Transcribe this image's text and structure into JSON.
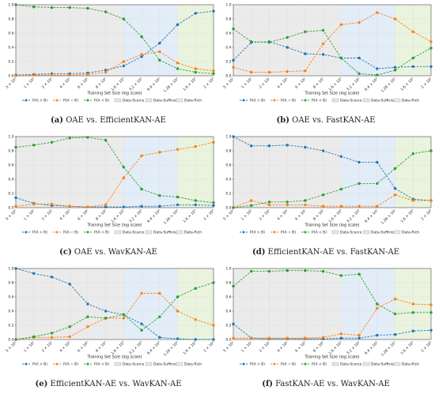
{
  "chart_data": [
    {
      "type": "line",
      "tag": "(a)",
      "caption": "OAE vs. EfficientKAN-AE",
      "x_label": "Training Set Size (log scale)",
      "categories": [
        "5 × 10¹",
        "1 × 10²",
        "2 × 10²",
        "4 × 10²",
        "6 × 10²",
        "8 × 10²",
        "1.6 × 10³",
        "3.2 × 10³",
        "6.4 × 10³",
        "1.28 × 10⁴",
        "1.6 × 10⁴",
        "2 × 10⁴"
      ],
      "series": [
        {
          "name": "P(A ≻ B)",
          "color": "#1f77b4",
          "values": [
            0.01,
            0.02,
            0.03,
            0.03,
            0.04,
            0.08,
            0.14,
            0.27,
            0.46,
            0.72,
            0.88,
            0.91
          ]
        },
        {
          "name": "P(A = B)",
          "color": "#ff7f0e",
          "values": [
            0.0,
            0.01,
            0.01,
            0.01,
            0.02,
            0.05,
            0.2,
            0.3,
            0.34,
            0.18,
            0.1,
            0.07
          ]
        },
        {
          "name": "P(A ≺ B)",
          "color": "#2ca02c",
          "values": [
            1.0,
            0.97,
            0.96,
            0.96,
            0.95,
            0.9,
            0.8,
            0.55,
            0.22,
            0.1,
            0.05,
            0.03
          ]
        }
      ],
      "regions": [
        {
          "name": "Data-Scarce",
          "color": "#e6e6e6",
          "start": "5 × 10¹",
          "end": "1.6 × 10³"
        },
        {
          "name": "Data-Sufficient",
          "color": "#dce8f6",
          "start": "1.6 × 10³",
          "end": "1.28 × 10⁴"
        },
        {
          "name": "Data-Rich",
          "color": "#e3f0d6",
          "start": "1.28 × 10⁴",
          "end": "2 × 10⁴"
        }
      ],
      "ylim": [
        0,
        1
      ],
      "yticks": [
        {
          "value": 0,
          "label": "0.0"
        },
        {
          "value": 0.2,
          "label": "0.2"
        },
        {
          "value": 0.4,
          "label": "0.4"
        },
        {
          "value": 0.6,
          "label": "0.6"
        },
        {
          "value": 0.8,
          "label": "0.8"
        },
        {
          "value": 1,
          "label": "1.0"
        }
      ],
      "grid": true
    },
    {
      "type": "line",
      "tag": "(b)",
      "caption": "OAE vs. FastKAN-AE",
      "x_label": "Training Set Size (log scale)",
      "categories": [
        "5 × 10¹",
        "1 × 10²",
        "2 × 10²",
        "4 × 10²",
        "6 × 10²",
        "8 × 10²",
        "1.6 × 10³",
        "3.2 × 10³",
        "6.4 × 10³",
        "1.28 × 10⁴",
        "1.6 × 10⁴",
        "2 × 10⁴"
      ],
      "series": [
        {
          "name": "P(A ≻ B)",
          "color": "#1f77b4",
          "values": [
            0.22,
            0.47,
            0.48,
            0.4,
            0.31,
            0.3,
            0.25,
            0.25,
            0.1,
            0.12,
            0.13,
            0.13
          ]
        },
        {
          "name": "P(A = B)",
          "color": "#ff7f0e",
          "values": [
            0.12,
            0.05,
            0.05,
            0.06,
            0.07,
            0.45,
            0.72,
            0.75,
            0.89,
            0.8,
            0.62,
            0.48
          ]
        },
        {
          "name": "P(A ≺ B)",
          "color": "#2ca02c",
          "values": [
            0.66,
            0.48,
            0.47,
            0.54,
            0.62,
            0.64,
            0.25,
            0.03,
            0.01,
            0.08,
            0.25,
            0.39
          ]
        }
      ],
      "regions": [
        {
          "name": "Data-Scarce",
          "color": "#e6e6e6",
          "start": "5 × 10¹",
          "end": "1.6 × 10³"
        },
        {
          "name": "Data-Sufficient",
          "color": "#dce8f6",
          "start": "1.6 × 10³",
          "end": "1.28 × 10⁴"
        },
        {
          "name": "Data-Rich",
          "color": "#e3f0d6",
          "start": "1.28 × 10⁴",
          "end": "2 × 10⁴"
        }
      ],
      "ylim": [
        0,
        1
      ],
      "yticks": [
        {
          "value": 0,
          "label": "0.0"
        },
        {
          "value": 0.2,
          "label": "0.2"
        },
        {
          "value": 0.4,
          "label": "0.4"
        },
        {
          "value": 0.6,
          "label": "0.6"
        },
        {
          "value": 0.8,
          "label": "0.8"
        },
        {
          "value": 1,
          "label": "1.0"
        }
      ],
      "grid": true
    },
    {
      "type": "line",
      "tag": "(c)",
      "caption": "OAE vs. WavKAN-AE",
      "x_label": "Training Set Size (log scale)",
      "categories": [
        "5 × 10¹",
        "1 × 10²",
        "2 × 10²",
        "4 × 10²",
        "6 × 10²",
        "8 × 10²",
        "1.6 × 10³",
        "3.2 × 10³",
        "6.4 × 10³",
        "1.28 × 10⁴",
        "1.6 × 10⁴",
        "2 × 10⁴"
      ],
      "series": [
        {
          "name": "P(A ≻ B)",
          "color": "#1f77b4",
          "values": [
            0.14,
            0.06,
            0.03,
            0.02,
            0.01,
            0.01,
            0.01,
            0.02,
            0.02,
            0.04,
            0.04,
            0.03
          ]
        },
        {
          "name": "P(A = B)",
          "color": "#ff7f0e",
          "values": [
            0.02,
            0.05,
            0.05,
            0.02,
            0.01,
            0.04,
            0.42,
            0.73,
            0.78,
            0.82,
            0.86,
            0.92
          ]
        },
        {
          "name": "P(A ≺ B)",
          "color": "#2ca02c",
          "values": [
            0.85,
            0.88,
            0.92,
            0.98,
            0.99,
            0.95,
            0.57,
            0.26,
            0.17,
            0.15,
            0.1,
            0.07
          ]
        }
      ],
      "regions": [
        {
          "name": "Data-Scarce",
          "color": "#e6e6e6",
          "start": "5 × 10¹",
          "end": "1.6 × 10³"
        },
        {
          "name": "Data-Sufficient",
          "color": "#dce8f6",
          "start": "1.6 × 10³",
          "end": "1.28 × 10⁴"
        },
        {
          "name": "Data-Rich",
          "color": "#e3f0d6",
          "start": "1.28 × 10⁴",
          "end": "2 × 10⁴"
        }
      ],
      "ylim": [
        0,
        1
      ],
      "yticks": [
        {
          "value": 0,
          "label": "0.0"
        },
        {
          "value": 0.2,
          "label": "0.2"
        },
        {
          "value": 0.4,
          "label": "0.4"
        },
        {
          "value": 0.6,
          "label": "0.6"
        },
        {
          "value": 0.8,
          "label": "0.8"
        },
        {
          "value": 1,
          "label": "1.0"
        }
      ],
      "grid": true
    },
    {
      "type": "line",
      "tag": "(d)",
      "caption": "EfficientKAN-AE vs. FastKAN-AE",
      "x_label": "Training Set Size (log scale)",
      "categories": [
        "5 × 10¹",
        "1 × 10²",
        "2 × 10²",
        "4 × 10²",
        "6 × 10²",
        "8 × 10²",
        "1.6 × 10³",
        "3.2 × 10³",
        "6.4 × 10³",
        "1.28 × 10⁴",
        "1.6 × 10⁴",
        "2 × 10⁴"
      ],
      "series": [
        {
          "name": "P(A ≻ B)",
          "color": "#1f77b4",
          "values": [
            1.0,
            0.87,
            0.87,
            0.88,
            0.85,
            0.8,
            0.72,
            0.64,
            0.64,
            0.27,
            0.12,
            0.1
          ]
        },
        {
          "name": "P(A = B)",
          "color": "#ff7f0e",
          "values": [
            0.0,
            0.1,
            0.04,
            0.04,
            0.04,
            0.02,
            0.02,
            0.02,
            0.02,
            0.18,
            0.1,
            0.1
          ]
        },
        {
          "name": "P(A ≺ B)",
          "color": "#2ca02c",
          "values": [
            0.0,
            0.03,
            0.08,
            0.08,
            0.1,
            0.18,
            0.26,
            0.34,
            0.34,
            0.55,
            0.76,
            0.8
          ]
        }
      ],
      "regions": [
        {
          "name": "Data-Scarce",
          "color": "#e6e6e6",
          "start": "5 × 10¹",
          "end": "1.6 × 10³"
        },
        {
          "name": "Data-Sufficient",
          "color": "#dce8f6",
          "start": "1.6 × 10³",
          "end": "1.28 × 10⁴"
        },
        {
          "name": "Data-Rich",
          "color": "#e3f0d6",
          "start": "1.28 × 10⁴",
          "end": "2 × 10⁴"
        }
      ],
      "ylim": [
        0,
        1
      ],
      "yticks": [
        {
          "value": 0,
          "label": "0.0"
        },
        {
          "value": 0.2,
          "label": "0.2"
        },
        {
          "value": 0.4,
          "label": "0.4"
        },
        {
          "value": 0.6,
          "label": "0.6"
        },
        {
          "value": 0.8,
          "label": "0.8"
        },
        {
          "value": 1,
          "label": "1.0"
        }
      ],
      "grid": true
    },
    {
      "type": "line",
      "tag": "(e)",
      "caption": "EfficientKAN-AE vs. WavKAN-AE",
      "x_label": "Training Set Size (log scale)",
      "categories": [
        "5 × 10¹",
        "1 × 10²",
        "2 × 10²",
        "4 × 10²",
        "6 × 10²",
        "8 × 10²",
        "1.6 × 10³",
        "3.2 × 10³",
        "6.4 × 10³",
        "1.28 × 10⁴",
        "1.6 × 10⁴",
        "2 × 10⁴"
      ],
      "series": [
        {
          "name": "P(A ≻ B)",
          "color": "#1f77b4",
          "values": [
            1.0,
            0.93,
            0.88,
            0.78,
            0.5,
            0.4,
            0.35,
            0.22,
            0.03,
            0.01,
            0.0,
            0.0
          ]
        },
        {
          "name": "P(A = B)",
          "color": "#ff7f0e",
          "values": [
            0.0,
            0.03,
            0.03,
            0.04,
            0.18,
            0.3,
            0.3,
            0.65,
            0.65,
            0.4,
            0.28,
            0.2
          ]
        },
        {
          "name": "P(A ≺ B)",
          "color": "#2ca02c",
          "values": [
            0.0,
            0.04,
            0.09,
            0.18,
            0.32,
            0.3,
            0.35,
            0.13,
            0.32,
            0.6,
            0.72,
            0.8
          ]
        }
      ],
      "regions": [
        {
          "name": "Data-Scarce",
          "color": "#e6e6e6",
          "start": "5 × 10¹",
          "end": "1.6 × 10³"
        },
        {
          "name": "Data-Sufficient",
          "color": "#dce8f6",
          "start": "1.6 × 10³",
          "end": "1.28 × 10⁴"
        },
        {
          "name": "Data-Rich",
          "color": "#e3f0d6",
          "start": "1.28 × 10⁴",
          "end": "2 × 10⁴"
        }
      ],
      "ylim": [
        0,
        1
      ],
      "yticks": [
        {
          "value": 0,
          "label": "0.0"
        },
        {
          "value": 0.2,
          "label": "0.2"
        },
        {
          "value": 0.4,
          "label": "0.4"
        },
        {
          "value": 0.6,
          "label": "0.6"
        },
        {
          "value": 0.8,
          "label": "0.8"
        },
        {
          "value": 1,
          "label": "1.0"
        }
      ],
      "grid": true
    },
    {
      "type": "line",
      "tag": "(f)",
      "caption": "FastKAN-AE vs. WavKAN-AE",
      "x_label": "Training Set Size (log scale)",
      "categories": [
        "5 × 10¹",
        "1 × 10²",
        "2 × 10²",
        "4 × 10²",
        "6 × 10²",
        "8 × 10²",
        "1.6 × 10³",
        "3.2 × 10³",
        "6.4 × 10³",
        "1.28 × 10⁴",
        "1.6 × 10⁴",
        "2 × 10⁴"
      ],
      "series": [
        {
          "name": "P(A ≻ B)",
          "color": "#1f77b4",
          "values": [
            0.22,
            0.02,
            0.01,
            0.01,
            0.01,
            0.01,
            0.02,
            0.02,
            0.06,
            0.07,
            0.12,
            0.13
          ]
        },
        {
          "name": "P(A = B)",
          "color": "#ff7f0e",
          "values": [
            0.02,
            0.02,
            0.02,
            0.02,
            0.02,
            0.03,
            0.08,
            0.06,
            0.44,
            0.57,
            0.5,
            0.49
          ]
        },
        {
          "name": "P(A ≺ B)",
          "color": "#2ca02c",
          "values": [
            0.75,
            0.96,
            0.96,
            0.97,
            0.97,
            0.96,
            0.9,
            0.92,
            0.5,
            0.36,
            0.38,
            0.38
          ]
        }
      ],
      "regions": [
        {
          "name": "Data-Scarce",
          "color": "#e6e6e6",
          "start": "5 × 10¹",
          "end": "1.6 × 10³"
        },
        {
          "name": "Data-Sufficient",
          "color": "#dce8f6",
          "start": "1.6 × 10³",
          "end": "1.28 × 10⁴"
        },
        {
          "name": "Data-Rich",
          "color": "#e3f0d6",
          "start": "1.28 × 10⁴",
          "end": "2 × 10⁴"
        }
      ],
      "ylim": [
        0,
        1
      ],
      "yticks": [
        {
          "value": 0,
          "label": "0.0"
        },
        {
          "value": 0.2,
          "label": "0.2"
        },
        {
          "value": 0.4,
          "label": "0.4"
        },
        {
          "value": 0.6,
          "label": "0.6"
        },
        {
          "value": 0.8,
          "label": "0.8"
        },
        {
          "value": 1,
          "label": "1.0"
        }
      ],
      "grid": true
    }
  ]
}
